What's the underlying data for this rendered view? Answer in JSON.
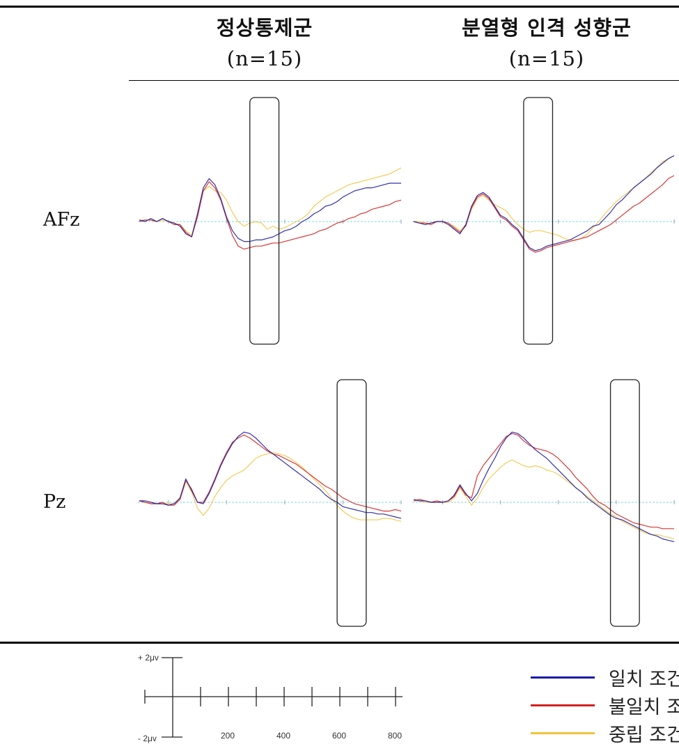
{
  "table": {
    "columns": [
      {
        "title": "정상통제군",
        "n": "(n=15)"
      },
      {
        "title": "분열형 인격 성향군",
        "n": "(n=15)"
      }
    ],
    "rows": [
      "AFz",
      "Pz"
    ]
  },
  "scale": {
    "plus_label": "+ 2μv",
    "minus_label": "- 2μv",
    "tick_labels": [
      "200",
      "400",
      "600",
      "800"
    ]
  },
  "legend": [
    {
      "label": "일치 조건",
      "color": "#1a1aa6"
    },
    {
      "label": "불일치 조건",
      "color": "#d42020"
    },
    {
      "label": "중립 조건",
      "color": "#f2c23a"
    }
  ],
  "colors": {
    "baseline": "#7fd8e8"
  },
  "chart_data": {
    "type": "line",
    "x_unit": "ms",
    "xlim": [
      -100,
      800
    ],
    "y_scale_uV": 2,
    "series_names": [
      "일치 조건",
      "불일치 조건",
      "중립 조건"
    ],
    "panels": [
      {
        "electrode": "AFz",
        "group": "정상통제군",
        "window_ms": [
          280,
          380
        ],
        "x": [
          -100,
          -80,
          -60,
          -40,
          -20,
          0,
          20,
          40,
          60,
          80,
          100,
          120,
          140,
          160,
          180,
          200,
          220,
          240,
          260,
          280,
          300,
          320,
          340,
          360,
          380,
          400,
          420,
          440,
          460,
          480,
          500,
          520,
          540,
          560,
          580,
          600,
          620,
          640,
          660,
          680,
          700,
          720,
          740,
          760,
          780,
          800
        ],
        "series": [
          {
            "name": "일치 조건",
            "values": [
              0.1,
              0,
              0.2,
              0,
              0.2,
              0,
              -0.1,
              -0.3,
              -0.8,
              -1,
              0.5,
              2.2,
              2.8,
              2.4,
              1.5,
              0.3,
              -0.6,
              -1.1,
              -1.3,
              -1.3,
              -1.2,
              -1.2,
              -1.1,
              -1,
              -0.8,
              -0.6,
              -0.5,
              -0.3,
              0,
              0.2,
              0.5,
              0.7,
              1,
              1.1,
              1.3,
              1.6,
              1.8,
              2,
              2.1,
              2.2,
              2.2,
              2.3,
              2.4,
              2.5,
              2.5,
              2.5
            ]
          },
          {
            "name": "불일치 조건",
            "values": [
              0,
              0.1,
              0.1,
              0,
              0.2,
              0,
              -0.2,
              -0.2,
              -0.7,
              -1,
              0.3,
              2,
              2.6,
              2.2,
              1.4,
              0.2,
              -0.9,
              -1.6,
              -1.8,
              -1.7,
              -1.6,
              -1.6,
              -1.5,
              -1.4,
              -1.4,
              -1.3,
              -1.2,
              -1.1,
              -1,
              -0.9,
              -0.8,
              -0.6,
              -0.5,
              -0.3,
              -0.1,
              0,
              0.2,
              0.3,
              0.5,
              0.6,
              0.8,
              0.9,
              1,
              1.1,
              1.3,
              1.4
            ]
          },
          {
            "name": "중립 조건",
            "values": [
              0.1,
              0.1,
              0.1,
              0,
              0.1,
              0,
              -0.1,
              -0.2,
              -0.6,
              -0.9,
              0.5,
              2,
              2.3,
              2,
              1.9,
              1.4,
              0.6,
              0,
              -0.3,
              -0.1,
              0,
              -0.1,
              -0.5,
              -0.3,
              -0.5,
              -0.4,
              -0.2,
              0,
              0.2,
              0.5,
              1,
              1.3,
              1.6,
              1.8,
              2,
              2.2,
              2.4,
              2.5,
              2.6,
              2.7,
              2.8,
              2.9,
              3,
              3.1,
              3.3,
              3.5
            ]
          }
        ]
      },
      {
        "electrode": "AFz",
        "group": "분열형 인격 성향군",
        "window_ms": [
          280,
          380
        ],
        "x": [
          -100,
          -80,
          -60,
          -40,
          -20,
          0,
          20,
          40,
          60,
          80,
          100,
          120,
          140,
          160,
          180,
          200,
          220,
          240,
          260,
          280,
          300,
          320,
          340,
          360,
          380,
          400,
          420,
          440,
          460,
          480,
          500,
          520,
          540,
          560,
          580,
          600,
          620,
          640,
          660,
          680,
          700,
          720,
          740,
          760,
          780,
          800
        ],
        "series": [
          {
            "name": "일치 조건",
            "values": [
              0,
              -0.1,
              -0.2,
              -0.1,
              0,
              0,
              -0.2,
              -0.5,
              -0.8,
              -0.2,
              1,
              1.7,
              1.9,
              1.6,
              1,
              0.4,
              0.2,
              -0.2,
              -0.5,
              -1.1,
              -1.7,
              -1.9,
              -1.8,
              -1.6,
              -1.5,
              -1.4,
              -1.3,
              -1.2,
              -1,
              -0.8,
              -0.6,
              -0.3,
              -0.2,
              0.2,
              0.6,
              1.1,
              1.4,
              1.8,
              2.2,
              2.5,
              2.8,
              3.1,
              3.5,
              3.8,
              4.1,
              4.3
            ]
          },
          {
            "name": "불일치 조건",
            "values": [
              0,
              -0.1,
              -0.1,
              -0.2,
              0,
              0,
              -0.1,
              -0.4,
              -0.7,
              -0.3,
              0.9,
              1.6,
              1.8,
              1.5,
              0.9,
              0.3,
              0.1,
              -0.3,
              -0.6,
              -1.2,
              -1.8,
              -2,
              -1.9,
              -1.7,
              -1.6,
              -1.5,
              -1.4,
              -1.3,
              -1.2,
              -1.1,
              -1,
              -0.8,
              -0.6,
              -0.4,
              -0.2,
              0.1,
              0.4,
              0.7,
              1,
              1.2,
              1.5,
              1.8,
              2.1,
              2.4,
              2.8,
              3
            ]
          },
          {
            "name": "중립 조건",
            "values": [
              0,
              0,
              -0.1,
              -0.1,
              0,
              0,
              -0.2,
              -0.3,
              -0.6,
              -0.2,
              0.8,
              1.5,
              1.7,
              1.4,
              1.1,
              0.9,
              0.7,
              0.2,
              -0.2,
              -0.5,
              -0.7,
              -0.6,
              -0.6,
              -0.7,
              -0.8,
              -0.9,
              -1.1,
              -1.2,
              -1.2,
              -1.1,
              -0.8,
              -0.4,
              0,
              0.5,
              0.9,
              1.3,
              1.6,
              1.9,
              2.2,
              2.5,
              2.8,
              3.2,
              3.5,
              3.9,
              4.1,
              4.3
            ]
          }
        ]
      },
      {
        "electrode": "Pz",
        "group": "정상통제군",
        "window_ms": [
          580,
          680
        ],
        "x": [
          -100,
          -80,
          -60,
          -40,
          -20,
          0,
          20,
          40,
          60,
          80,
          100,
          120,
          140,
          160,
          180,
          200,
          220,
          240,
          260,
          280,
          300,
          320,
          340,
          360,
          380,
          400,
          420,
          440,
          460,
          480,
          500,
          520,
          540,
          560,
          580,
          600,
          620,
          640,
          660,
          680,
          700,
          720,
          740,
          760,
          780,
          800
        ],
        "series": [
          {
            "name": "일치 조건",
            "values": [
              0.1,
              0.1,
              0,
              -0.1,
              -0.1,
              -0.2,
              -0.1,
              0.3,
              1.6,
              0.8,
              0,
              -0.1,
              0.6,
              1.5,
              2.5,
              3.3,
              4,
              4.5,
              4.8,
              4.7,
              4.4,
              4,
              3.6,
              3.3,
              3,
              2.7,
              2.4,
              2.1,
              1.8,
              1.5,
              1.2,
              0.9,
              0.5,
              0.2,
              0,
              -0.3,
              -0.4,
              -0.5,
              -0.6,
              -0.7,
              -0.7,
              -0.8,
              -0.8,
              -0.9,
              -1,
              -1.1
            ]
          },
          {
            "name": "불일치 조건",
            "values": [
              0.1,
              0,
              -0.1,
              -0.1,
              0,
              -0.2,
              -0.2,
              0.2,
              1.5,
              0.9,
              0,
              0,
              0.7,
              1.6,
              2.6,
              3.4,
              4.1,
              4.4,
              4.6,
              4.4,
              4.1,
              3.8,
              3.5,
              3.3,
              3.2,
              3,
              2.8,
              2.6,
              2.3,
              2,
              1.7,
              1.4,
              1.1,
              0.9,
              0.6,
              0.3,
              0.1,
              -0.1,
              -0.2,
              -0.3,
              -0.4,
              -0.5,
              -0.6,
              -0.6,
              -0.5,
              -0.6
            ]
          },
          {
            "name": "중립 조건",
            "values": [
              0.1,
              0,
              -0.1,
              -0.1,
              -0.1,
              -0.1,
              -0.1,
              0.2,
              1.4,
              0.7,
              -0.4,
              -0.9,
              -0.4,
              0.4,
              1,
              1.5,
              1.8,
              2,
              2.2,
              2.6,
              3,
              3.2,
              3.3,
              3.4,
              3.3,
              3.2,
              3,
              2.7,
              2.4,
              2,
              1.6,
              1.2,
              0.8,
              0.3,
              -0.2,
              -0.6,
              -0.9,
              -1.1,
              -1.2,
              -1.2,
              -1.2,
              -1.2,
              -1.1,
              -1.1,
              -1.2,
              -1.3
            ]
          }
        ]
      },
      {
        "electrode": "Pz",
        "group": "분열형 인격 성향군",
        "window_ms": [
          580,
          680
        ],
        "x": [
          -100,
          -80,
          -60,
          -40,
          -20,
          0,
          20,
          40,
          60,
          80,
          100,
          120,
          140,
          160,
          180,
          200,
          220,
          240,
          260,
          280,
          300,
          320,
          340,
          360,
          380,
          400,
          420,
          440,
          460,
          480,
          500,
          520,
          540,
          560,
          580,
          600,
          620,
          640,
          660,
          680,
          700,
          720,
          740,
          760,
          780,
          800
        ],
        "series": [
          {
            "name": "일치 조건",
            "values": [
              0.2,
              0.1,
              0.1,
              0,
              0,
              0,
              0.1,
              0.5,
              1.2,
              0.6,
              0.1,
              0.6,
              1.5,
              2.3,
              3,
              3.8,
              4.4,
              4.8,
              4.7,
              4.4,
              4,
              3.6,
              3.3,
              3,
              2.6,
              2.2,
              1.8,
              1.4,
              1,
              0.7,
              0.3,
              0,
              -0.3,
              -0.6,
              -0.9,
              -1.1,
              -1.2,
              -1.4,
              -1.6,
              -1.8,
              -2,
              -2.2,
              -2.3,
              -2.5,
              -2.6,
              -2.7
            ]
          },
          {
            "name": "불일치 조건",
            "values": [
              0.1,
              0.2,
              0.1,
              0,
              0.1,
              0,
              0.1,
              0.4,
              1.1,
              0.5,
              0.3,
              1.8,
              2.5,
              3,
              3.5,
              4,
              4.5,
              4.7,
              4.6,
              4.2,
              3.9,
              3.7,
              3.6,
              3.5,
              3.3,
              3,
              2.6,
              2.2,
              1.7,
              1.3,
              0.9,
              0.4,
              0,
              -0.2,
              -0.5,
              -0.8,
              -1,
              -1.2,
              -1.4,
              -1.5,
              -1.6,
              -1.7,
              -1.7,
              -1.8,
              -1.8,
              -1.8
            ]
          },
          {
            "name": "중립 조건",
            "values": [
              0.1,
              0.1,
              0,
              0,
              0,
              0,
              0,
              0.3,
              1,
              0.4,
              -0.2,
              0.3,
              1,
              1.6,
              2,
              2.4,
              2.7,
              2.9,
              2.7,
              2.5,
              2.4,
              2.5,
              2.4,
              2.2,
              2.1,
              1.9,
              1.6,
              1.3,
              1,
              0.7,
              0.4,
              0.1,
              -0.2,
              -0.5,
              -0.8,
              -1,
              -1.3,
              -1.5,
              -1.7,
              -1.9,
              -2.1,
              -2.2,
              -2.2,
              -2.3,
              -2.4,
              -2.5
            ]
          }
        ]
      }
    ]
  }
}
